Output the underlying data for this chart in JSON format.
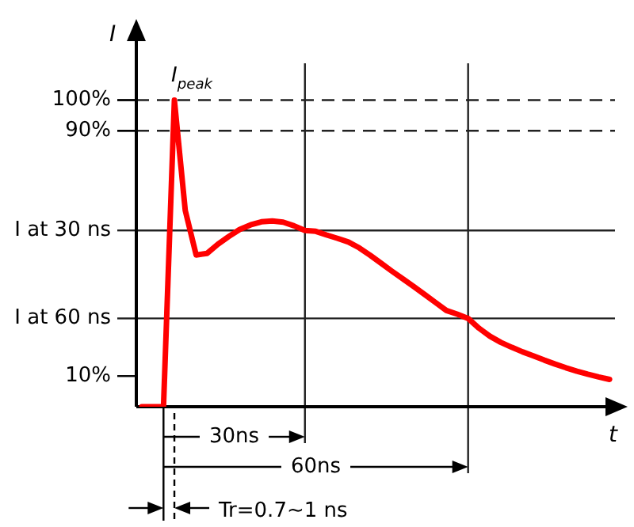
{
  "chart_data": {
    "type": "line",
    "xlabel": "t",
    "ylabel": "I",
    "categories": [
      null,
      null,
      null,
      null,
      null,
      null,
      null,
      null,
      null,
      null,
      null,
      null,
      null,
      null,
      null,
      null,
      null,
      null,
      null,
      null,
      null,
      null,
      null,
      null,
      null,
      null,
      null,
      null,
      null,
      null,
      null,
      null,
      null,
      null,
      null,
      null,
      null,
      null,
      null,
      null,
      null,
      null,
      null,
      null
    ],
    "series": [
      {
        "color": "#ff0000",
        "values": [
          0,
          0,
          0,
          100,
          64,
          49.5,
          50,
          53,
          55.5,
          57.8,
          59.3,
          60.3,
          60.6,
          60.2,
          59,
          57.5,
          57.2,
          56,
          54.9,
          53.7,
          51.8,
          49.4,
          46.8,
          44.2,
          41.7,
          39.2,
          36.6,
          34,
          31.4,
          30.2,
          28.8,
          25.6,
          23,
          21,
          19.4,
          17.9,
          16.6,
          15.2,
          13.9,
          12.7,
          11.6,
          10.6,
          9.7,
          8.9
        ]
      }
    ],
    "ylim": [
      0,
      112
    ],
    "yticks": [
      {
        "value": 10,
        "label": "10%"
      },
      {
        "value": 90,
        "label": "90%"
      },
      {
        "value": 100,
        "label": "100%"
      }
    ],
    "tick_labels": "y",
    "grid": false,
    "legend": false,
    "marker": "none",
    "line_style": "solid",
    "ref_lines": [
      {
        "axis": "y",
        "value": 100,
        "line_style": "dashed"
      },
      {
        "axis": "y",
        "value": 90,
        "line_style": "dashed"
      },
      {
        "axis": "y",
        "value": 57.5,
        "line_style": "solid",
        "label": "I at 30 ns"
      },
      {
        "axis": "y",
        "value": 28.8,
        "line_style": "solid",
        "label": "I at 60 ns"
      }
    ],
    "annotations": [
      "I$_{peak}$",
      "30ns",
      "60ns",
      "Tr=0.7~1 ns"
    ]
  }
}
